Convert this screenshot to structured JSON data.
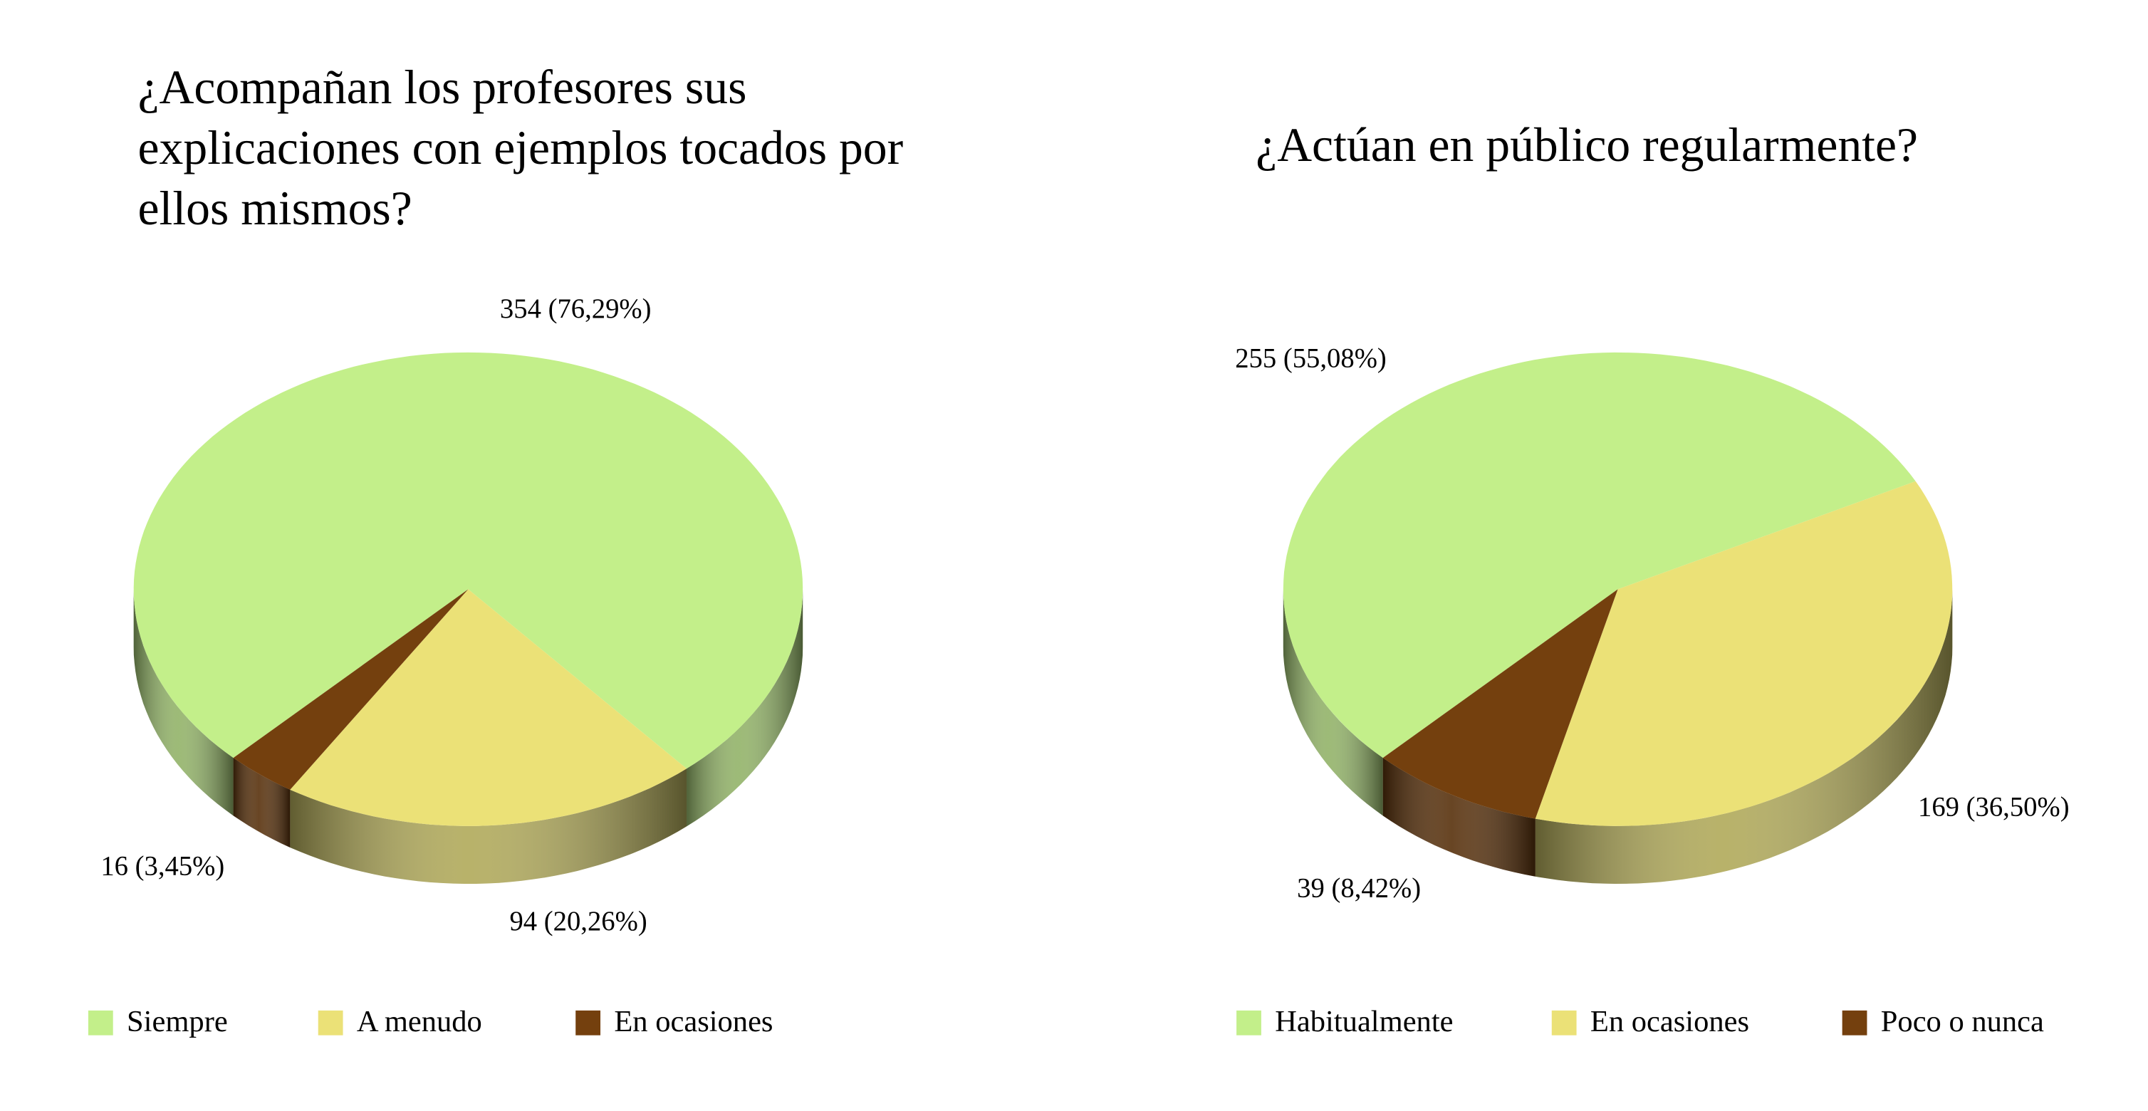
{
  "chart_data": [
    {
      "type": "pie",
      "title": "¿Acompañan los profesores sus explicaciones con ejemplos tocados por ellos mismos?",
      "categories": [
        "Siempre",
        "A menudo",
        "En ocasiones"
      ],
      "values": [
        354,
        94,
        16
      ],
      "value_labels": [
        "354 (76,29%)",
        "94 (20,26%)",
        "16 (3,45%)"
      ],
      "colors": [
        "#c3ef8a",
        "#ebe177",
        "#74400e"
      ]
    },
    {
      "type": "pie",
      "title": "¿Actúan en público regularmente?",
      "categories": [
        "Habitualmente",
        "En ocasiones",
        "Poco o nunca"
      ],
      "values": [
        255,
        169,
        39
      ],
      "value_labels": [
        "255 (55,08%)",
        "169 (36,50%)",
        "39 (8,42%)"
      ],
      "colors": [
        "#c3ef8a",
        "#ebe177",
        "#74400e"
      ]
    }
  ]
}
